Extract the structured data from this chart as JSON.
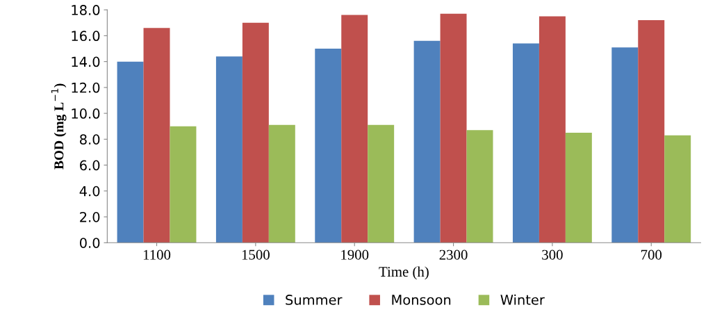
{
  "chart_data": {
    "type": "bar",
    "xlabel": "Time (h)",
    "ylabel": "BOD (mg L$^{−1}$)",
    "categories": [
      "1100",
      "1500",
      "1900",
      "2300",
      "300",
      "700"
    ],
    "series": [
      {
        "name": "Summer",
        "color": "#4f81bd",
        "values": [
          14.0,
          14.4,
          15.0,
          15.6,
          15.4,
          15.1
        ]
      },
      {
        "name": "Monsoon",
        "color": "#c0504d",
        "values": [
          16.6,
          17.0,
          17.6,
          17.7,
          17.5,
          17.2
        ]
      },
      {
        "name": "Winter",
        "color": "#9bbb59",
        "values": [
          9.0,
          9.1,
          9.1,
          8.7,
          8.5,
          8.3
        ]
      }
    ],
    "ylim": [
      0,
      18
    ],
    "yticks": [
      {
        "value": 0,
        "label": "0.0"
      },
      {
        "value": 2,
        "label": "2.0"
      },
      {
        "value": 4,
        "label": "4.0"
      },
      {
        "value": 6,
        "label": "6.0"
      },
      {
        "value": 8,
        "label": "8.0"
      },
      {
        "value": 10,
        "label": "10.0"
      },
      {
        "value": 12,
        "label": "12.0"
      },
      {
        "value": 14,
        "label": "14.0"
      },
      {
        "value": 16,
        "label": "16.0"
      },
      {
        "value": 18,
        "label": "18.0"
      }
    ],
    "grid": false,
    "legend": "bottom"
  }
}
